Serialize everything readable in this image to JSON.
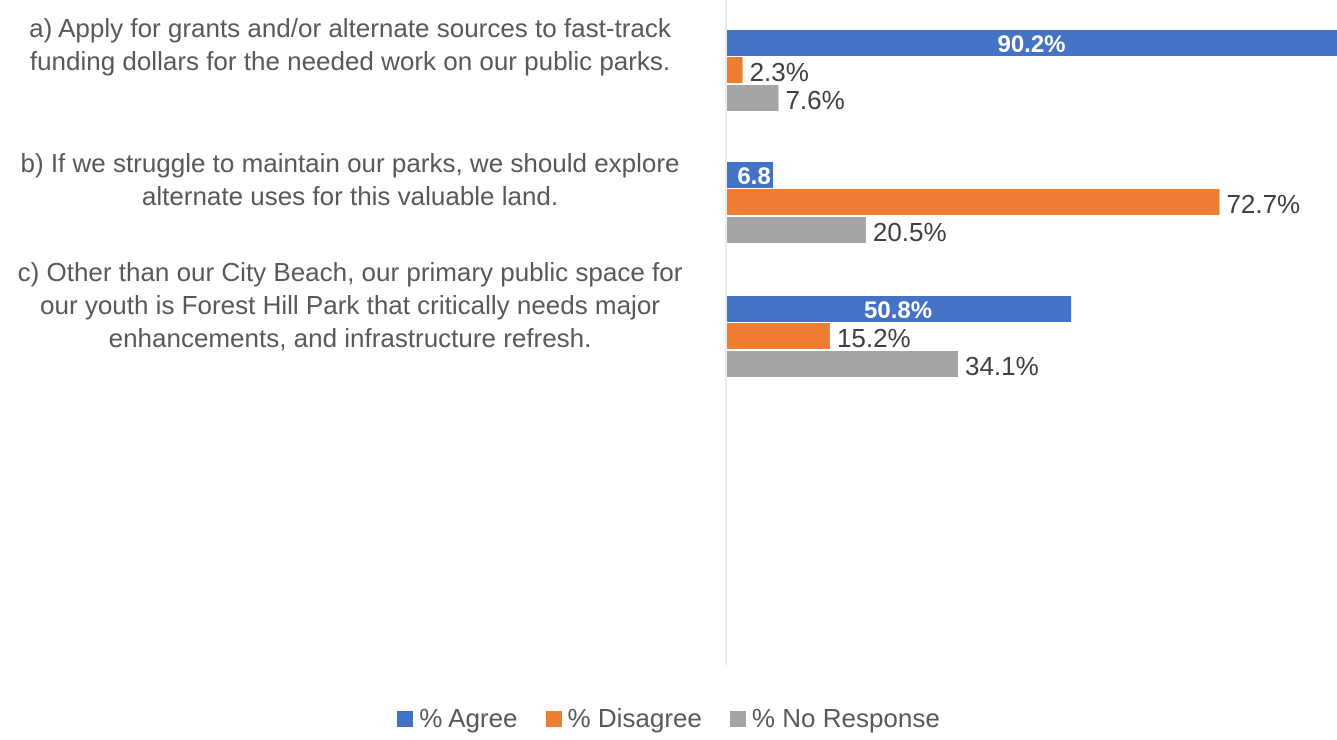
{
  "chart_data": {
    "type": "bar",
    "orientation": "horizontal",
    "categories": [
      "a) Apply for grants and/or alternate sources to fast-track funding dollars for the needed work on our public parks.",
      "b) If we struggle to maintain our parks, we should explore alternate uses for this valuable land.",
      "c) Other than our City Beach, our primary public space for our youth is Forest Hill Park that critically needs major enhancements, and infrastructure refresh."
    ],
    "series": [
      {
        "name": "% Agree",
        "values": [
          90.2,
          6.8,
          50.8
        ],
        "labels": [
          "90.2%",
          "6.8",
          "50.8%"
        ],
        "color": "#4472C4"
      },
      {
        "name": "% Disagree",
        "values": [
          2.3,
          72.7,
          15.2
        ],
        "labels": [
          "2.3%",
          "72.7%",
          "15.2%"
        ],
        "color": "#ED7D31"
      },
      {
        "name": "% No Response",
        "values": [
          7.6,
          20.5,
          34.1
        ],
        "labels": [
          "7.6%",
          "20.5%",
          "34.1%"
        ],
        "color": "#A5A5A5"
      }
    ],
    "xlim": [
      0,
      90.2
    ],
    "grid": false,
    "legend_position": "bottom"
  }
}
